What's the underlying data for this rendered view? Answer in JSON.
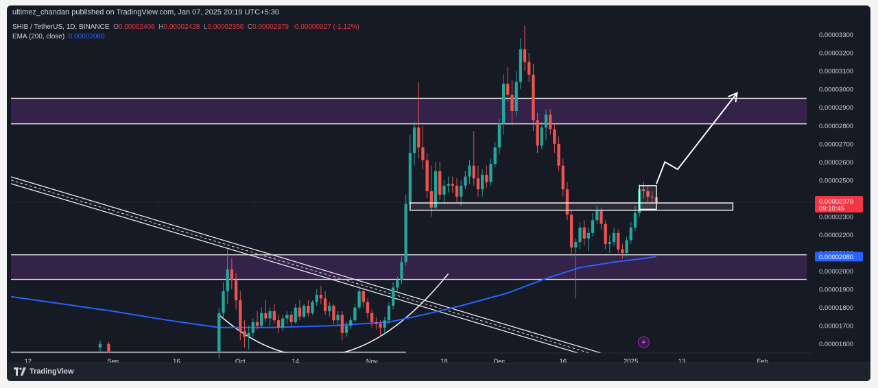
{
  "header": {
    "published": "ultimez_chandan published on TradingView.com, Jan 07, 2025 20:19 UTC+5:30"
  },
  "legend": {
    "symbol": "SHIB / TetherUS, 1D, BINANCE",
    "o_label": "O",
    "o_value": "0.00002406",
    "h_label": "H",
    "h_value": "0.00002428",
    "l_label": "L",
    "l_value": "0.00002356",
    "c_label": "C",
    "c_value": "0.00002379",
    "change": "-0.00000027 (-1.12%)",
    "ema_label": "EMA (200, close)",
    "ema_value": "0.00002080"
  },
  "footer": {
    "brand": "TradingView"
  },
  "colors": {
    "background": "#161a25",
    "up": "#26a69a",
    "down": "#ef5350",
    "ema": "#2962ff",
    "zone": "#3a2450",
    "price_tag": "#f23645",
    "ema_tag": "#2962ff"
  },
  "chart_data": {
    "type": "candlestick",
    "symbol": "SHIB / TetherUS",
    "interval": "1D",
    "x_ticks": [
      {
        "label": "12",
        "date": "2024-08-12"
      },
      {
        "label": "Sep",
        "date": "2024-09-01"
      },
      {
        "label": "16",
        "date": "2024-09-16"
      },
      {
        "label": "Oct",
        "date": "2024-10-01"
      },
      {
        "label": "14",
        "date": "2024-10-14"
      },
      {
        "label": "Nov",
        "date": "2024-11-01"
      },
      {
        "label": "18",
        "date": "2024-11-18"
      },
      {
        "label": "Dec",
        "date": "2024-12-01"
      },
      {
        "label": "16",
        "date": "2024-12-16"
      },
      {
        "label": "2025",
        "date": "2025-01-01"
      },
      {
        "label": "13",
        "date": "2025-01-13"
      },
      {
        "label": "Feb",
        "date": "2025-02-01"
      }
    ],
    "y_ticks": [
      "0.00003300",
      "0.00003200",
      "0.00003100",
      "0.00003000",
      "0.00002900",
      "0.00002800",
      "0.00002700",
      "0.00002600",
      "0.00002500",
      "0.00002400",
      "0.00002300",
      "0.00002200",
      "0.00002100",
      "0.00002000",
      "0.00001900",
      "0.00001800",
      "0.00001700",
      "0.00001600"
    ],
    "y_range": [
      1.55e-05,
      3.37e-05
    ],
    "x_range": [
      "2024-08-08",
      "2025-02-13"
    ],
    "last_price": {
      "label": "0.00002379",
      "countdown": "09:10:45"
    },
    "ema_tag": {
      "label": "0.00002080"
    },
    "zones": [
      {
        "top": 2.95e-05,
        "bottom": 2.81e-05
      },
      {
        "top": 2.09e-05,
        "bottom": 1.955e-05
      },
      {
        "top": 1.555e-05,
        "bottom": 1.52e-05
      }
    ],
    "boxes": [
      {
        "x0": "2024-11-10",
        "x1": "2025-01-25",
        "top": 2.375e-05,
        "bottom": 2.335e-05
      },
      {
        "x0": "2025-01-03",
        "x1": "2025-01-07",
        "top": 2.47e-05,
        "bottom": 2.34e-05
      }
    ],
    "trendline": {
      "x0": "2024-08-08",
      "y0": 2.5e-05,
      "x1": "2024-12-28",
      "y1": 1.51e-05
    },
    "arrow": [
      {
        "date": "2025-01-07",
        "price": 2.48e-05
      },
      {
        "date": "2025-01-09",
        "price": 2.6e-05
      },
      {
        "date": "2025-01-12",
        "price": 2.56e-05
      },
      {
        "date": "2025-01-26",
        "price": 2.98e-05
      }
    ],
    "arc": {
      "x0": "2024-09-26",
      "x1": "2024-11-19",
      "top": 1.76e-05,
      "bottom": 1.47e-05
    },
    "candles": [
      {
        "d": "2024-09-26",
        "o": 1.56,
        "h": 1.8,
        "l": 1.52,
        "c": 1.77
      },
      {
        "d": "2024-09-27",
        "o": 1.77,
        "h": 1.94,
        "l": 1.74,
        "c": 1.89
      },
      {
        "d": "2024-09-28",
        "o": 1.89,
        "h": 2.12,
        "l": 1.82,
        "c": 2.01
      },
      {
        "d": "2024-09-29",
        "o": 2.01,
        "h": 2.07,
        "l": 1.9,
        "c": 1.95
      },
      {
        "d": "2024-09-30",
        "o": 1.95,
        "h": 1.99,
        "l": 1.79,
        "c": 1.84
      },
      {
        "d": "2024-10-01",
        "o": 1.84,
        "h": 1.89,
        "l": 1.62,
        "c": 1.67
      },
      {
        "d": "2024-10-02",
        "o": 1.67,
        "h": 1.73,
        "l": 1.58,
        "c": 1.64
      },
      {
        "d": "2024-10-03",
        "o": 1.64,
        "h": 1.7,
        "l": 1.57,
        "c": 1.66
      },
      {
        "d": "2024-10-04",
        "o": 1.66,
        "h": 1.74,
        "l": 1.64,
        "c": 1.72
      },
      {
        "d": "2024-10-05",
        "o": 1.72,
        "h": 1.78,
        "l": 1.68,
        "c": 1.7
      },
      {
        "d": "2024-10-06",
        "o": 1.7,
        "h": 1.8,
        "l": 1.69,
        "c": 1.77
      },
      {
        "d": "2024-10-07",
        "o": 1.77,
        "h": 1.84,
        "l": 1.72,
        "c": 1.74
      },
      {
        "d": "2024-10-08",
        "o": 1.74,
        "h": 1.8,
        "l": 1.7,
        "c": 1.78
      },
      {
        "d": "2024-10-09",
        "o": 1.78,
        "h": 1.82,
        "l": 1.71,
        "c": 1.73
      },
      {
        "d": "2024-10-10",
        "o": 1.73,
        "h": 1.76,
        "l": 1.66,
        "c": 1.69
      },
      {
        "d": "2024-10-11",
        "o": 1.69,
        "h": 1.76,
        "l": 1.67,
        "c": 1.74
      },
      {
        "d": "2024-10-12",
        "o": 1.74,
        "h": 1.78,
        "l": 1.71,
        "c": 1.76
      },
      {
        "d": "2024-10-13",
        "o": 1.76,
        "h": 1.78,
        "l": 1.7,
        "c": 1.72
      },
      {
        "d": "2024-10-14",
        "o": 1.72,
        "h": 1.82,
        "l": 1.71,
        "c": 1.8
      },
      {
        "d": "2024-10-15",
        "o": 1.8,
        "h": 1.84,
        "l": 1.73,
        "c": 1.75
      },
      {
        "d": "2024-10-16",
        "o": 1.75,
        "h": 1.82,
        "l": 1.74,
        "c": 1.81
      },
      {
        "d": "2024-10-17",
        "o": 1.81,
        "h": 1.84,
        "l": 1.75,
        "c": 1.77
      },
      {
        "d": "2024-10-18",
        "o": 1.77,
        "h": 1.84,
        "l": 1.76,
        "c": 1.83
      },
      {
        "d": "2024-10-19",
        "o": 1.83,
        "h": 1.9,
        "l": 1.81,
        "c": 1.87
      },
      {
        "d": "2024-10-20",
        "o": 1.87,
        "h": 1.92,
        "l": 1.82,
        "c": 1.85
      },
      {
        "d": "2024-10-21",
        "o": 1.85,
        "h": 1.89,
        "l": 1.76,
        "c": 1.78
      },
      {
        "d": "2024-10-22",
        "o": 1.78,
        "h": 1.83,
        "l": 1.75,
        "c": 1.81
      },
      {
        "d": "2024-10-23",
        "o": 1.81,
        "h": 1.82,
        "l": 1.71,
        "c": 1.73
      },
      {
        "d": "2024-10-24",
        "o": 1.73,
        "h": 1.78,
        "l": 1.7,
        "c": 1.76
      },
      {
        "d": "2024-10-25",
        "o": 1.76,
        "h": 1.78,
        "l": 1.62,
        "c": 1.66
      },
      {
        "d": "2024-10-26",
        "o": 1.66,
        "h": 1.72,
        "l": 1.64,
        "c": 1.7
      },
      {
        "d": "2024-10-27",
        "o": 1.7,
        "h": 1.75,
        "l": 1.68,
        "c": 1.73
      },
      {
        "d": "2024-10-28",
        "o": 1.73,
        "h": 1.82,
        "l": 1.72,
        "c": 1.8
      },
      {
        "d": "2024-10-29",
        "o": 1.8,
        "h": 1.92,
        "l": 1.79,
        "c": 1.89
      },
      {
        "d": "2024-10-30",
        "o": 1.89,
        "h": 1.91,
        "l": 1.8,
        "c": 1.83
      },
      {
        "d": "2024-10-31",
        "o": 1.83,
        "h": 1.85,
        "l": 1.74,
        "c": 1.77
      },
      {
        "d": "2024-11-01",
        "o": 1.77,
        "h": 1.79,
        "l": 1.69,
        "c": 1.72
      },
      {
        "d": "2024-11-02",
        "o": 1.72,
        "h": 1.75,
        "l": 1.68,
        "c": 1.71
      },
      {
        "d": "2024-11-03",
        "o": 1.71,
        "h": 1.73,
        "l": 1.64,
        "c": 1.69
      },
      {
        "d": "2024-11-04",
        "o": 1.69,
        "h": 1.75,
        "l": 1.65,
        "c": 1.73
      },
      {
        "d": "2024-11-05",
        "o": 1.73,
        "h": 1.83,
        "l": 1.71,
        "c": 1.81
      },
      {
        "d": "2024-11-06",
        "o": 1.81,
        "h": 1.94,
        "l": 1.79,
        "c": 1.91
      },
      {
        "d": "2024-11-07",
        "o": 1.91,
        "h": 1.97,
        "l": 1.88,
        "c": 1.95
      },
      {
        "d": "2024-11-08",
        "o": 1.95,
        "h": 2.08,
        "l": 1.93,
        "c": 2.05
      },
      {
        "d": "2024-11-09",
        "o": 2.05,
        "h": 2.42,
        "l": 2.03,
        "c": 2.37
      },
      {
        "d": "2024-11-10",
        "o": 2.37,
        "h": 2.75,
        "l": 2.33,
        "c": 2.65
      },
      {
        "d": "2024-11-11",
        "o": 2.65,
        "h": 2.82,
        "l": 2.58,
        "c": 2.79
      },
      {
        "d": "2024-11-12",
        "o": 2.79,
        "h": 3.04,
        "l": 2.62,
        "c": 2.68
      },
      {
        "d": "2024-11-13",
        "o": 2.68,
        "h": 2.8,
        "l": 2.56,
        "c": 2.61
      },
      {
        "d": "2024-11-14",
        "o": 2.61,
        "h": 2.65,
        "l": 2.4,
        "c": 2.44
      },
      {
        "d": "2024-11-15",
        "o": 2.44,
        "h": 2.58,
        "l": 2.3,
        "c": 2.35
      },
      {
        "d": "2024-11-16",
        "o": 2.35,
        "h": 2.6,
        "l": 2.34,
        "c": 2.55
      },
      {
        "d": "2024-11-17",
        "o": 2.55,
        "h": 2.6,
        "l": 2.39,
        "c": 2.42
      },
      {
        "d": "2024-11-18",
        "o": 2.42,
        "h": 2.5,
        "l": 2.37,
        "c": 2.47
      },
      {
        "d": "2024-11-19",
        "o": 2.47,
        "h": 2.52,
        "l": 2.43,
        "c": 2.48
      },
      {
        "d": "2024-11-20",
        "o": 2.48,
        "h": 2.52,
        "l": 2.43,
        "c": 2.47
      },
      {
        "d": "2024-11-21",
        "o": 2.47,
        "h": 2.51,
        "l": 2.38,
        "c": 2.41
      },
      {
        "d": "2024-11-22",
        "o": 2.41,
        "h": 2.5,
        "l": 2.36,
        "c": 2.47
      },
      {
        "d": "2024-11-23",
        "o": 2.47,
        "h": 2.55,
        "l": 2.45,
        "c": 2.52
      },
      {
        "d": "2024-11-24",
        "o": 2.52,
        "h": 2.61,
        "l": 2.48,
        "c": 2.58
      },
      {
        "d": "2024-11-25",
        "o": 2.58,
        "h": 2.77,
        "l": 2.47,
        "c": 2.51
      },
      {
        "d": "2024-11-26",
        "o": 2.51,
        "h": 2.58,
        "l": 2.41,
        "c": 2.45
      },
      {
        "d": "2024-11-27",
        "o": 2.45,
        "h": 2.56,
        "l": 2.41,
        "c": 2.53
      },
      {
        "d": "2024-11-28",
        "o": 2.53,
        "h": 2.58,
        "l": 2.46,
        "c": 2.49
      },
      {
        "d": "2024-11-29",
        "o": 2.49,
        "h": 2.62,
        "l": 2.47,
        "c": 2.59
      },
      {
        "d": "2024-11-30",
        "o": 2.59,
        "h": 2.71,
        "l": 2.57,
        "c": 2.68
      },
      {
        "d": "2024-12-01",
        "o": 2.68,
        "h": 2.84,
        "l": 2.64,
        "c": 2.81
      },
      {
        "d": "2024-12-02",
        "o": 2.81,
        "h": 3.08,
        "l": 2.75,
        "c": 3.03
      },
      {
        "d": "2024-12-03",
        "o": 3.03,
        "h": 3.12,
        "l": 2.93,
        "c": 2.97
      },
      {
        "d": "2024-12-04",
        "o": 2.97,
        "h": 3.05,
        "l": 2.8,
        "c": 2.88
      },
      {
        "d": "2024-12-05",
        "o": 2.88,
        "h": 3.1,
        "l": 2.85,
        "c": 3.04
      },
      {
        "d": "2024-12-06",
        "o": 3.04,
        "h": 3.28,
        "l": 3.0,
        "c": 3.22
      },
      {
        "d": "2024-12-07",
        "o": 3.22,
        "h": 3.35,
        "l": 3.1,
        "c": 3.15
      },
      {
        "d": "2024-12-08",
        "o": 3.15,
        "h": 3.2,
        "l": 3.04,
        "c": 3.08
      },
      {
        "d": "2024-12-09",
        "o": 3.08,
        "h": 3.14,
        "l": 2.77,
        "c": 2.83
      },
      {
        "d": "2024-12-10",
        "o": 2.83,
        "h": 2.87,
        "l": 2.65,
        "c": 2.69
      },
      {
        "d": "2024-12-11",
        "o": 2.69,
        "h": 2.82,
        "l": 2.67,
        "c": 2.79
      },
      {
        "d": "2024-12-12",
        "o": 2.79,
        "h": 2.89,
        "l": 2.72,
        "c": 2.86
      },
      {
        "d": "2024-12-13",
        "o": 2.86,
        "h": 2.89,
        "l": 2.75,
        "c": 2.78
      },
      {
        "d": "2024-12-14",
        "o": 2.78,
        "h": 2.81,
        "l": 2.65,
        "c": 2.7
      },
      {
        "d": "2024-12-15",
        "o": 2.7,
        "h": 2.74,
        "l": 2.55,
        "c": 2.58
      },
      {
        "d": "2024-12-16",
        "o": 2.58,
        "h": 2.62,
        "l": 2.41,
        "c": 2.45
      },
      {
        "d": "2024-12-17",
        "o": 2.45,
        "h": 2.49,
        "l": 2.28,
        "c": 2.31
      },
      {
        "d": "2024-12-18",
        "o": 2.31,
        "h": 2.33,
        "l": 2.08,
        "c": 2.13
      },
      {
        "d": "2024-12-19",
        "o": 2.13,
        "h": 2.18,
        "l": 1.85,
        "c": 2.16
      },
      {
        "d": "2024-12-20",
        "o": 2.16,
        "h": 2.27,
        "l": 2.12,
        "c": 2.24
      },
      {
        "d": "2024-12-21",
        "o": 2.24,
        "h": 2.28,
        "l": 2.14,
        "c": 2.18
      },
      {
        "d": "2024-12-22",
        "o": 2.18,
        "h": 2.24,
        "l": 2.11,
        "c": 2.21
      },
      {
        "d": "2024-12-23",
        "o": 2.21,
        "h": 2.32,
        "l": 2.19,
        "c": 2.28
      },
      {
        "d": "2024-12-24",
        "o": 2.28,
        "h": 2.36,
        "l": 2.26,
        "c": 2.33
      },
      {
        "d": "2024-12-25",
        "o": 2.33,
        "h": 2.35,
        "l": 2.23,
        "c": 2.26
      },
      {
        "d": "2024-12-26",
        "o": 2.26,
        "h": 2.28,
        "l": 2.12,
        "c": 2.15
      },
      {
        "d": "2024-12-27",
        "o": 2.15,
        "h": 2.2,
        "l": 2.1,
        "c": 2.16
      },
      {
        "d": "2024-12-28",
        "o": 2.16,
        "h": 2.24,
        "l": 2.14,
        "c": 2.21
      },
      {
        "d": "2024-12-29",
        "o": 2.21,
        "h": 2.23,
        "l": 2.1,
        "c": 2.12
      },
      {
        "d": "2024-12-30",
        "o": 2.12,
        "h": 2.15,
        "l": 2.07,
        "c": 2.1
      },
      {
        "d": "2024-12-31",
        "o": 2.1,
        "h": 2.19,
        "l": 2.08,
        "c": 2.17
      },
      {
        "d": "2025-01-01",
        "o": 2.17,
        "h": 2.27,
        "l": 2.15,
        "c": 2.24
      },
      {
        "d": "2025-01-02",
        "o": 2.24,
        "h": 2.36,
        "l": 2.22,
        "c": 2.32
      },
      {
        "d": "2025-01-03",
        "o": 2.32,
        "h": 2.48,
        "l": 2.3,
        "c": 2.45
      },
      {
        "d": "2025-01-04",
        "o": 2.45,
        "h": 2.49,
        "l": 2.4,
        "c": 2.44
      },
      {
        "d": "2025-01-05",
        "o": 2.44,
        "h": 2.47,
        "l": 2.38,
        "c": 2.41
      },
      {
        "d": "2025-01-06",
        "o": 2.41,
        "h": 2.44,
        "l": 2.37,
        "c": 2.406
      },
      {
        "d": "2025-01-07",
        "o": 2.406,
        "h": 2.428,
        "l": 2.356,
        "c": 2.379
      }
    ],
    "ema": [
      {
        "d": "2024-08-08",
        "v": 1.86
      },
      {
        "d": "2024-08-20",
        "v": 1.82
      },
      {
        "d": "2024-09-01",
        "v": 1.78
      },
      {
        "d": "2024-09-14",
        "v": 1.73
      },
      {
        "d": "2024-09-26",
        "v": 1.69
      },
      {
        "d": "2024-10-08",
        "v": 1.69
      },
      {
        "d": "2024-10-22",
        "v": 1.7
      },
      {
        "d": "2024-11-05",
        "v": 1.72
      },
      {
        "d": "2024-11-13",
        "v": 1.76
      },
      {
        "d": "2024-11-22",
        "v": 1.81
      },
      {
        "d": "2024-12-03",
        "v": 1.88
      },
      {
        "d": "2024-12-12",
        "v": 1.96
      },
      {
        "d": "2024-12-20",
        "v": 2.02
      },
      {
        "d": "2024-12-28",
        "v": 2.05
      },
      {
        "d": "2025-01-04",
        "v": 2.07
      },
      {
        "d": "2025-01-07",
        "v": 2.08
      }
    ]
  }
}
